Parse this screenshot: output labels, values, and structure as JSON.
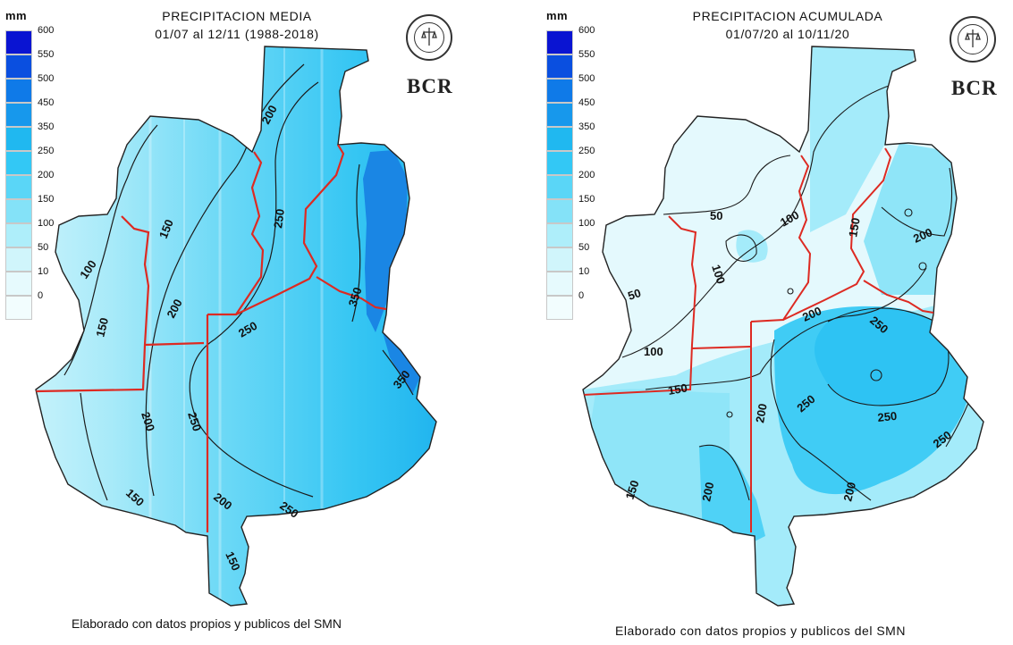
{
  "legend": {
    "unit": "mm",
    "ticks": [
      "600",
      "550",
      "500",
      "450",
      "350",
      "250",
      "200",
      "150",
      "100",
      "50",
      "10",
      "0"
    ],
    "colors": [
      "#0a14d2",
      "#0a4fe0",
      "#0f7ae8",
      "#1798ec",
      "#20b8f0",
      "#33c8f5",
      "#5ad6f7",
      "#84e2f8",
      "#aeeefa",
      "#d0f5fb",
      "#e6fafd",
      "#f2fdfe"
    ]
  },
  "logo": {
    "text": "BCR"
  },
  "maps": [
    {
      "title_line1": "PRECIPITACION MEDIA",
      "title_line2": "01/07 al 12/11 (1988-2018)",
      "contour_labels": [
        "200",
        "250",
        "150",
        "100",
        "150",
        "200",
        "250",
        "350",
        "350",
        "250",
        "200",
        "150",
        "200",
        "250",
        "150"
      ],
      "footer": "Elaborado con datos propios y publicos del SMN"
    },
    {
      "title_line1": "PRECIPITACION ACUMULADA",
      "title_line2": "01/07/20 al 10/11/20",
      "contour_labels": [
        "50",
        "100",
        "150",
        "200",
        "100",
        "50",
        "200",
        "250",
        "100",
        "150",
        "200",
        "250",
        "250",
        "250",
        "150",
        "200",
        "200"
      ],
      "footer": "Elaborado con datos propios y publicos del SMN"
    }
  ]
}
